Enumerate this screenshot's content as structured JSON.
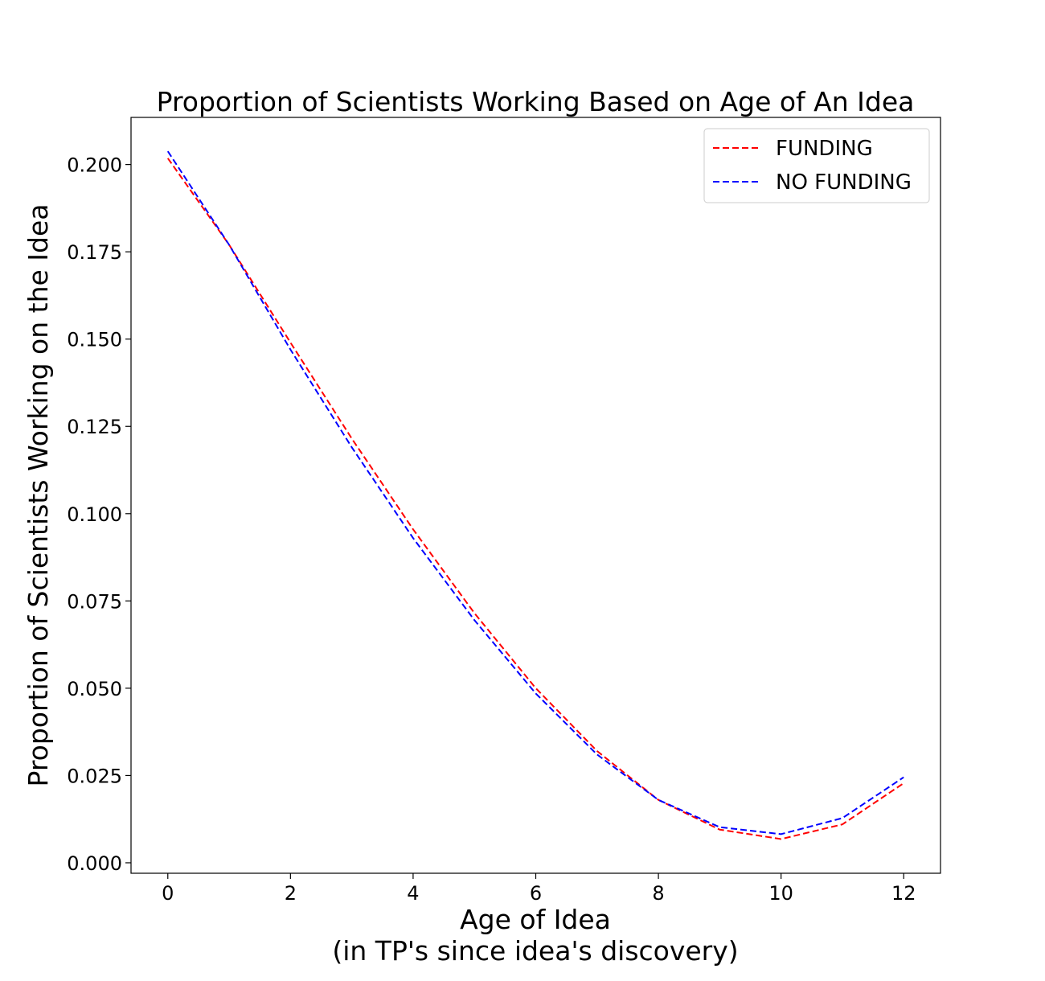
{
  "chart_data": {
    "type": "line",
    "title": "Proportion of Scientists Working Based on Age of An Idea",
    "xlabel": "Age of Idea",
    "xlabel_line2": "(in TP's since idea's discovery)",
    "ylabel": "Proportion of Scientists Working on the Idea",
    "x": [
      0,
      1,
      2,
      3,
      4,
      5,
      6,
      7,
      8,
      9,
      10,
      11,
      12
    ],
    "xticks": [
      0,
      2,
      4,
      6,
      8,
      10,
      12
    ],
    "xtick_labels": [
      "0",
      "2",
      "4",
      "6",
      "8",
      "10",
      "12"
    ],
    "yticks": [
      0.0,
      0.025,
      0.05,
      0.075,
      0.1,
      0.125,
      0.15,
      0.175,
      0.2
    ],
    "ytick_labels": [
      "0.000",
      "0.025",
      "0.050",
      "0.075",
      "0.100",
      "0.125",
      "0.150",
      "0.175",
      "0.200"
    ],
    "xlim": [
      -0.6,
      12.6
    ],
    "ylim": [
      -0.003,
      0.2135
    ],
    "grid": false,
    "legend_position": "top-right",
    "line_style": "dashed",
    "series": [
      {
        "name": "FUNDING",
        "color": "#ff0000",
        "values": [
          0.2018,
          0.177,
          0.149,
          0.1215,
          0.0955,
          0.0715,
          0.05,
          0.032,
          0.018,
          0.0095,
          0.0068,
          0.011,
          0.0228
        ]
      },
      {
        "name": "NO FUNDING",
        "color": "#0000ff",
        "values": [
          0.2038,
          0.177,
          0.147,
          0.119,
          0.093,
          0.0695,
          0.0485,
          0.031,
          0.018,
          0.0102,
          0.0082,
          0.0128,
          0.0245
        ]
      }
    ]
  }
}
